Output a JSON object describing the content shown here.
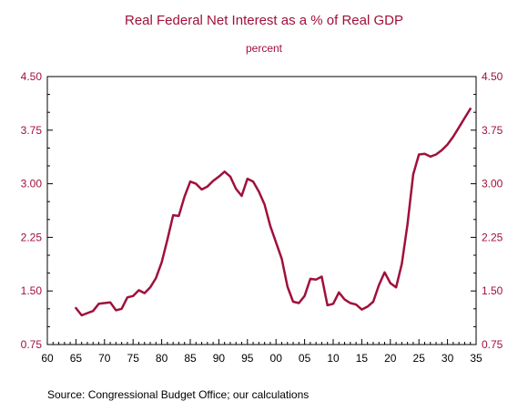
{
  "chart_data": {
    "type": "line",
    "title": "Real Federal Net Interest as a % of Real GDP",
    "subtitle": "percent",
    "source": "Source:   Congressional Budget Office; our calculations",
    "xlabel": "",
    "ylabel": "",
    "x_tick_labels": [
      "60",
      "65",
      "70",
      "75",
      "80",
      "85",
      "90",
      "95",
      "00",
      "05",
      "10",
      "15",
      "20",
      "25",
      "30",
      "35"
    ],
    "y_tick_labels": [
      "0.75",
      "1.50",
      "2.25",
      "3.00",
      "3.75",
      "4.50"
    ],
    "xlim": [
      1960,
      2035
    ],
    "ylim": [
      0.75,
      4.5
    ],
    "grid": false,
    "line_color": "#a0103a",
    "series": [
      {
        "x": [
          1965,
          1966,
          1967,
          1968,
          1969,
          1970,
          1971,
          1972,
          1973,
          1974,
          1975,
          1976,
          1977,
          1978,
          1979,
          1980,
          1981,
          1982,
          1983,
          1984,
          1985,
          1986,
          1987,
          1988,
          1989,
          1990,
          1991,
          1992,
          1993,
          1994,
          1995,
          1996,
          1997,
          1998,
          1999,
          2000,
          2001,
          2002,
          2003,
          2004,
          2005,
          2006,
          2007,
          2008,
          2009,
          2010,
          2011,
          2012,
          2013,
          2014,
          2015,
          2016,
          2017,
          2018,
          2019,
          2020,
          2021,
          2022,
          2023,
          2024,
          2025,
          2026,
          2027,
          2028,
          2029,
          2030,
          2031,
          2032,
          2033,
          2034
        ],
        "values": [
          1.26,
          1.16,
          1.19,
          1.22,
          1.32,
          1.33,
          1.34,
          1.23,
          1.25,
          1.41,
          1.43,
          1.51,
          1.47,
          1.55,
          1.68,
          1.9,
          2.22,
          2.56,
          2.55,
          2.82,
          3.03,
          3.0,
          2.92,
          2.96,
          3.04,
          3.1,
          3.17,
          3.1,
          2.93,
          2.83,
          3.07,
          3.03,
          2.89,
          2.71,
          2.41,
          2.18,
          1.95,
          1.56,
          1.35,
          1.33,
          1.43,
          1.67,
          1.66,
          1.7,
          1.3,
          1.32,
          1.48,
          1.38,
          1.33,
          1.31,
          1.24,
          1.28,
          1.35,
          1.58,
          1.76,
          1.61,
          1.55,
          1.88,
          2.43,
          3.13,
          3.41,
          3.42,
          3.38,
          3.41,
          3.47,
          3.55,
          3.66,
          3.79,
          3.92,
          4.05
        ]
      }
    ]
  }
}
